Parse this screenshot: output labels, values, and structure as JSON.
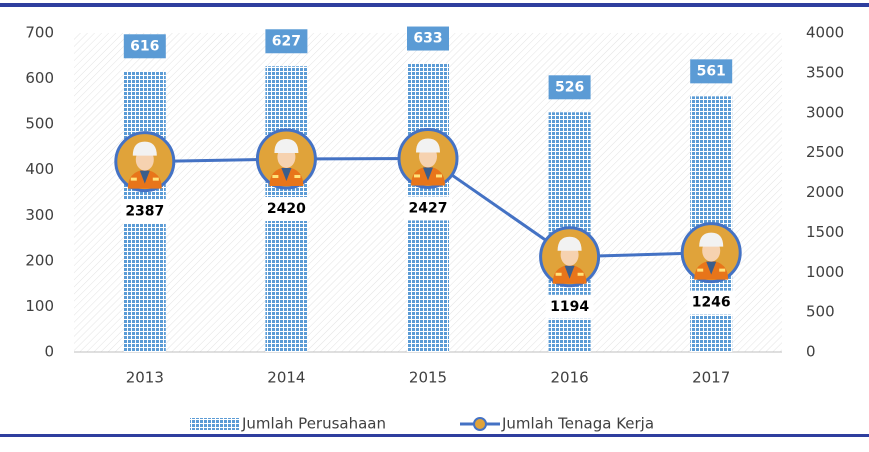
{
  "chart_data": {
    "type": "bar",
    "categories": [
      "2013",
      "2014",
      "2015",
      "2016",
      "2017"
    ],
    "series": [
      {
        "name": "Jumlah Perusahaan",
        "type": "bar",
        "color": "#5b9bd5",
        "values": [
          616,
          627,
          633,
          526,
          561
        ]
      },
      {
        "name": "Jumlah Tenaga Kerja",
        "type": "line",
        "axis": "y2",
        "color": "#4472c4",
        "values": [
          2387,
          2420,
          2427,
          1194,
          1246
        ]
      }
    ],
    "ylim": [
      0,
      700
    ],
    "yticks": [
      0,
      100,
      200,
      300,
      400,
      500,
      600,
      700
    ],
    "y2lim": [
      0,
      4000
    ],
    "y2ticks": [
      0,
      500,
      1000,
      1500,
      2000,
      2500,
      3000,
      3500,
      4000
    ],
    "grid": false,
    "legend": "bottom"
  }
}
